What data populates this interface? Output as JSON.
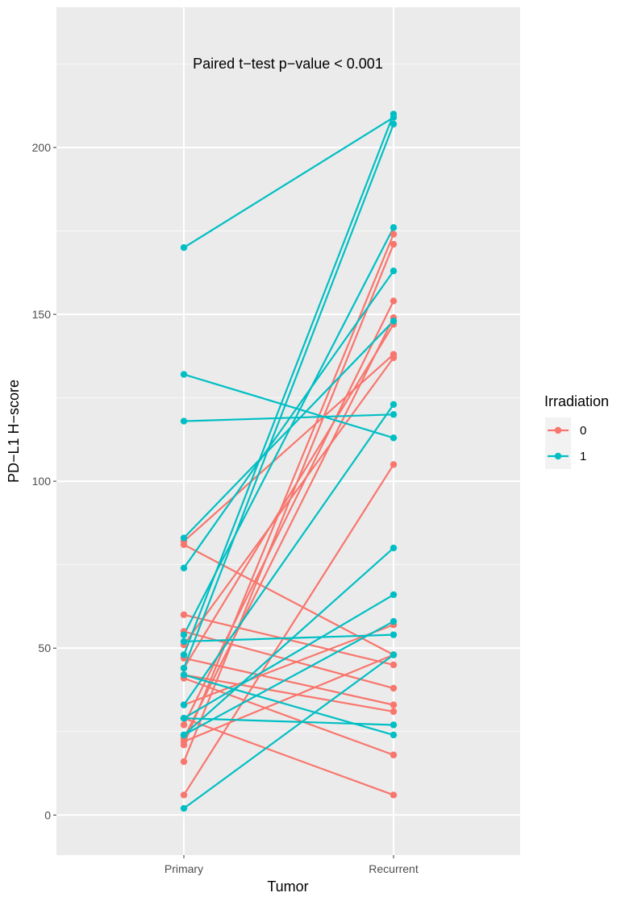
{
  "chart_data": {
    "type": "line",
    "title": "",
    "annotation": "Paired t−test p−value < 0.001",
    "xlabel": "Tumor",
    "ylabel": "PD−L1 H−score",
    "categories": [
      "Primary",
      "Recurrent"
    ],
    "ylim": [
      -12,
      242
    ],
    "yticks": [
      0,
      50,
      100,
      150,
      200
    ],
    "grid": true,
    "legend": {
      "title": "Irradiation",
      "position": "right",
      "entries": [
        {
          "label": "0",
          "color": "#F8766D"
        },
        {
          "label": "1",
          "color": "#00BFC4"
        }
      ]
    },
    "colors": {
      "0": "#F8766D",
      "1": "#00BFC4",
      "panel": "#EBEBEB",
      "grid_major": "#FFFFFF"
    },
    "series": [
      {
        "name": "0",
        "pairs": [
          [
            81,
            48
          ],
          [
            82,
            138
          ],
          [
            60,
            45
          ],
          [
            55,
            38
          ],
          [
            47,
            33
          ],
          [
            42,
            31
          ],
          [
            41,
            18
          ],
          [
            33,
            57
          ],
          [
            29,
            6
          ],
          [
            27,
            154
          ],
          [
            23,
            149
          ],
          [
            22,
            48
          ],
          [
            21,
            174
          ],
          [
            16,
            171
          ],
          [
            6,
            105
          ],
          [
            51,
            137
          ],
          [
            44,
            147
          ]
        ]
      },
      {
        "name": "1",
        "pairs": [
          [
            170,
            209
          ],
          [
            132,
            113
          ],
          [
            118,
            120
          ],
          [
            83,
            148
          ],
          [
            74,
            163
          ],
          [
            54,
            176
          ],
          [
            52,
            54
          ],
          [
            48,
            210
          ],
          [
            44,
            207
          ],
          [
            42,
            24
          ],
          [
            33,
            123
          ],
          [
            29,
            66
          ],
          [
            24,
            80
          ],
          [
            24,
            58
          ],
          [
            29,
            27
          ],
          [
            2,
            48
          ]
        ]
      }
    ]
  }
}
